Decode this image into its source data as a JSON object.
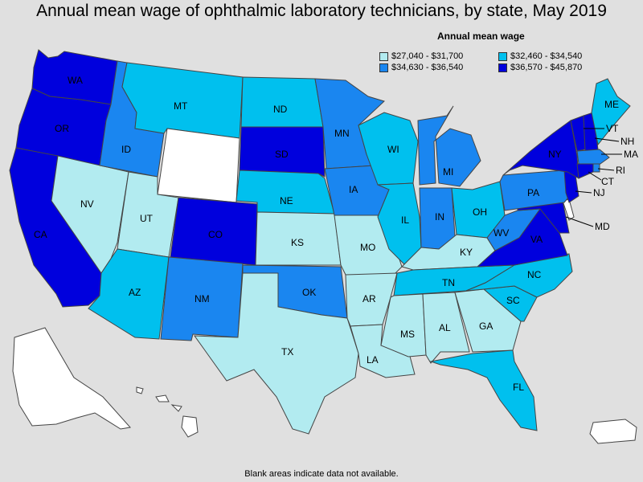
{
  "title": "Annual mean wage of ophthalmic laboratory technicians, by state, May 2019",
  "legend": {
    "title": "Annual mean wage",
    "items": [
      {
        "label": "$27,040 - $31,700",
        "color": "#b2ebf0"
      },
      {
        "label": "$32,460 - $34,540",
        "color": "#00c0ee"
      },
      {
        "label": "$34,630 - $36,540",
        "color": "#1a86f0"
      },
      {
        "label": "$36,570 - $45,870",
        "color": "#0000dd"
      }
    ]
  },
  "footnote": "Blank areas indicate data not available.",
  "colors": {
    "blank": "#ffffff",
    "c1": "#b2ebf0",
    "c2": "#00c0ee",
    "c3": "#1a86f0",
    "c4": "#0000dd"
  },
  "states": {
    "WA": {
      "label": "WA",
      "bin": 4
    },
    "OR": {
      "label": "OR",
      "bin": 4
    },
    "CA": {
      "label": "CA",
      "bin": 4
    },
    "ID": {
      "label": "ID",
      "bin": 3
    },
    "NV": {
      "label": "NV",
      "bin": 1
    },
    "MT": {
      "label": "MT",
      "bin": 2
    },
    "WY": {
      "label": "",
      "bin": 0
    },
    "UT": {
      "label": "UT",
      "bin": 1
    },
    "CO": {
      "label": "CO",
      "bin": 4
    },
    "AZ": {
      "label": "AZ",
      "bin": 2
    },
    "NM": {
      "label": "NM",
      "bin": 3
    },
    "ND": {
      "label": "ND",
      "bin": 2
    },
    "SD": {
      "label": "SD",
      "bin": 4
    },
    "NE": {
      "label": "NE",
      "bin": 2
    },
    "KS": {
      "label": "KS",
      "bin": 1
    },
    "OK": {
      "label": "OK",
      "bin": 3
    },
    "TX": {
      "label": "TX",
      "bin": 1
    },
    "MN": {
      "label": "MN",
      "bin": 3
    },
    "IA": {
      "label": "IA",
      "bin": 3
    },
    "MO": {
      "label": "MO",
      "bin": 1
    },
    "AR": {
      "label": "AR",
      "bin": 1
    },
    "LA": {
      "label": "LA",
      "bin": 1
    },
    "WI": {
      "label": "WI",
      "bin": 2
    },
    "IL": {
      "label": "IL",
      "bin": 2
    },
    "MI": {
      "label": "MI",
      "bin": 3
    },
    "IN": {
      "label": "IN",
      "bin": 3
    },
    "OH": {
      "label": "OH",
      "bin": 2
    },
    "KY": {
      "label": "KY",
      "bin": 1
    },
    "TN": {
      "label": "TN",
      "bin": 2
    },
    "MS": {
      "label": "MS",
      "bin": 1
    },
    "AL": {
      "label": "AL",
      "bin": 1
    },
    "GA": {
      "label": "GA",
      "bin": 1
    },
    "FL": {
      "label": "FL",
      "bin": 2
    },
    "SC": {
      "label": "SC",
      "bin": 2
    },
    "NC": {
      "label": "NC",
      "bin": 2
    },
    "VA": {
      "label": "VA",
      "bin": 4
    },
    "WV": {
      "label": "WV",
      "bin": 3
    },
    "PA": {
      "label": "PA",
      "bin": 3
    },
    "NY": {
      "label": "NY",
      "bin": 4
    },
    "VT": {
      "label": "VT",
      "bin": 4
    },
    "NH": {
      "label": "NH",
      "bin": 4
    },
    "ME": {
      "label": "ME",
      "bin": 2
    },
    "MA": {
      "label": "MA",
      "bin": 3
    },
    "RI": {
      "label": "RI",
      "bin": 3
    },
    "CT": {
      "label": "CT",
      "bin": 4
    },
    "NJ": {
      "label": "NJ",
      "bin": 4
    },
    "DE": {
      "label": "",
      "bin": 0
    },
    "MD": {
      "label": "MD",
      "bin": 4
    },
    "AK": {
      "label": "",
      "bin": 0
    },
    "HI": {
      "label": "",
      "bin": 0
    },
    "PR": {
      "label": "",
      "bin": 0
    }
  }
}
